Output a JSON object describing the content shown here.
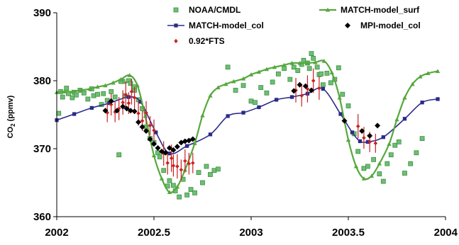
{
  "chart_data": {
    "type": "scatter",
    "title": "",
    "ylabel": "CO2 (ppmv)",
    "ylabel_main": "CO",
    "ylabel_sub": "2",
    "ylabel_rest": " (ppmv)",
    "xlabel": "",
    "xlim": [
      2002,
      2004
    ],
    "ylim": [
      360,
      390
    ],
    "x_ticks": [
      2002,
      2002.5,
      2003,
      2003.5,
      2004
    ],
    "x_tick_labels": [
      "2002",
      "2002.5",
      "2003",
      "2003.5",
      "2004"
    ],
    "y_ticks": [
      360,
      370,
      380,
      390
    ],
    "y_tick_labels": [
      "360",
      "370",
      "380",
      "390"
    ],
    "grid": false,
    "legend_position": "top",
    "colors": {
      "noaa": "#6dbf73",
      "noaa_edge": "#3f8f45",
      "surf": "#55a83c",
      "col": "#2b2b8a",
      "mpi": "#000000",
      "fts": "#cc1f1f"
    },
    "series": [
      {
        "name": "NOAA/CMDL",
        "key": "noaa",
        "style": "square-markers",
        "x": [
          2002.01,
          2002.02,
          2002.03,
          2002.05,
          2002.06,
          2002.08,
          2002.09,
          2002.1,
          2002.12,
          2002.14,
          2002.16,
          2002.18,
          2002.19,
          2002.21,
          2002.23,
          2002.24,
          2002.26,
          2002.28,
          2002.3,
          2002.32,
          2002.34,
          2002.35,
          2002.37,
          2002.38,
          2002.4,
          2002.42,
          2002.44,
          2002.46,
          2002.48,
          2002.5,
          2002.52,
          2002.53,
          2002.55,
          2002.57,
          2002.58,
          2002.6,
          2002.61,
          2002.63,
          2002.65,
          2002.67,
          2002.69,
          2002.71,
          2002.73,
          2002.75,
          2002.77,
          2002.79,
          2002.81,
          2002.83,
          2002.88,
          2002.92,
          2002.96,
          2003.0,
          2003.02,
          2003.05,
          2003.08,
          2003.11,
          2003.14,
          2003.17,
          2003.2,
          2003.22,
          2003.24,
          2003.26,
          2003.27,
          2003.29,
          2003.3,
          2003.32,
          2003.34,
          2003.35,
          2003.37,
          2003.39,
          2003.41,
          2003.43,
          2003.45,
          2003.47,
          2003.5,
          2003.53,
          2003.55,
          2003.58,
          2003.6,
          2003.63,
          2003.66,
          2003.68,
          2003.7,
          2003.72,
          2003.74,
          2003.76,
          2003.79,
          2003.82,
          2003.85,
          2003.88,
          2002.4,
          2002.33,
          2003.31,
          2003.36
        ],
        "y": [
          375.2,
          378.4,
          377.6,
          378.9,
          378.1,
          377.5,
          378.3,
          377.9,
          378.6,
          378.2,
          377.3,
          378.8,
          377.8,
          378.0,
          376.5,
          378.1,
          377.1,
          378.4,
          377.6,
          369.1,
          379.9,
          377.8,
          380.0,
          379.6,
          378.6,
          377.2,
          375.9,
          373.2,
          371.5,
          370.9,
          369.4,
          368.8,
          366.8,
          364.5,
          365.3,
          364.6,
          363.8,
          362.9,
          365.5,
          363.2,
          364.0,
          363.5,
          366.5,
          365.0,
          367.4,
          366.2,
          366.8,
          367.0,
          382.0,
          378.6,
          379.3,
          377.0,
          376.8,
          379.0,
          378.2,
          379.8,
          381.0,
          381.8,
          380.2,
          382.0,
          381.5,
          382.4,
          383.0,
          382.6,
          381.8,
          383.3,
          382.0,
          380.9,
          379.4,
          381.1,
          379.7,
          380.2,
          381.9,
          378.0,
          376.3,
          372.2,
          369.6,
          367.1,
          367.4,
          368.4,
          366.3,
          365.2,
          367.8,
          369.1,
          370.5,
          371.0,
          366.4,
          367.8,
          369.4,
          371.5,
          379.1,
          379.9,
          384.0,
          381.0
        ]
      },
      {
        "name": "MATCH-model_surf",
        "key": "surf",
        "style": "line-triangle",
        "x": [
          2002.0,
          2002.04,
          2002.08,
          2002.12,
          2002.17,
          2002.21,
          2002.25,
          2002.29,
          2002.33,
          2002.375,
          2002.415,
          2002.455,
          2002.5,
          2002.54,
          2002.58,
          2002.62,
          2002.66,
          2002.71,
          2002.75,
          2002.79,
          2002.83,
          2002.87,
          2002.91,
          2002.96,
          2003.0,
          2003.04,
          2003.08,
          2003.12,
          2003.17,
          2003.21,
          2003.25,
          2003.29,
          2003.33,
          2003.375,
          2003.415,
          2003.455,
          2003.5,
          2003.54,
          2003.58,
          2003.62,
          2003.66,
          2003.71,
          2003.75,
          2003.79,
          2003.83,
          2003.87,
          2003.91,
          2003.96
        ],
        "y": [
          378.3,
          378.4,
          378.4,
          378.6,
          378.8,
          379.1,
          379.3,
          379.7,
          380.2,
          380.8,
          379.3,
          374.8,
          369.0,
          365.6,
          363.6,
          364.4,
          366.9,
          370.8,
          374.9,
          377.8,
          379.0,
          379.5,
          379.9,
          380.3,
          380.9,
          381.3,
          381.7,
          382.0,
          382.3,
          382.6,
          382.6,
          382.6,
          382.7,
          382.9,
          381.2,
          377.5,
          371.3,
          367.4,
          365.6,
          366.0,
          367.8,
          370.7,
          374.3,
          377.5,
          379.5,
          380.6,
          381.1,
          381.4
        ]
      },
      {
        "name": "MATCH-model_col",
        "key": "col",
        "style": "line-square",
        "x": [
          2002.0,
          2002.09,
          2002.18,
          2002.27,
          2002.37,
          2002.43,
          2002.51,
          2002.58,
          2002.67,
          2002.79,
          2002.88,
          2002.96,
          2003.04,
          2003.13,
          2003.21,
          2003.29,
          2003.37,
          2003.46,
          2003.52,
          2003.56,
          2003.6,
          2003.68,
          2003.79,
          2003.88,
          2003.96
        ],
        "y": [
          374.2,
          375.1,
          376.0,
          376.7,
          377.6,
          376.9,
          372.4,
          369.3,
          370.4,
          372.1,
          374.8,
          375.3,
          376.1,
          377.2,
          377.6,
          378.1,
          378.8,
          375.1,
          372.4,
          371.1,
          371.0,
          371.7,
          374.4,
          376.8,
          377.3
        ]
      },
      {
        "name": "MPI-model_col",
        "key": "mpi",
        "style": "diamond-markers",
        "x": [
          2002.25,
          2002.28,
          2002.31,
          2002.34,
          2002.36,
          2002.38,
          2002.4,
          2002.42,
          2002.44,
          2002.46,
          2002.48,
          2002.5,
          2002.52,
          2002.54,
          2002.56,
          2002.58,
          2002.6,
          2002.62,
          2002.64,
          2002.66,
          2002.68,
          2002.7,
          2003.22,
          2003.25,
          2003.28,
          2003.31,
          2003.48,
          2003.57,
          2003.61,
          2003.65
        ],
        "y": [
          375.6,
          377.0,
          375.6,
          376.2,
          375.9,
          375.6,
          375.5,
          373.9,
          373.2,
          372.6,
          371.4,
          370.7,
          370.1,
          369.6,
          369.4,
          370.1,
          369.8,
          370.3,
          370.9,
          371.1,
          371.2,
          371.4,
          378.5,
          379.4,
          379.2,
          378.6,
          374.1,
          372.6,
          371.9,
          373.4
        ]
      },
      {
        "name": "0.92*FTS",
        "key": "fts",
        "style": "errorbar-markers",
        "x": [
          2002.26,
          2002.28,
          2002.3,
          2002.32,
          2002.34,
          2002.355,
          2002.37,
          2002.385,
          2002.4,
          2002.42,
          2002.44,
          2002.46,
          2002.48,
          2002.5,
          2002.55,
          2002.57,
          2002.59,
          2002.6,
          2002.62,
          2002.64,
          2002.66,
          2002.68,
          2002.7,
          2003.23,
          2003.26,
          2003.29,
          2003.32,
          2003.35,
          2003.55,
          2003.58,
          2003.61,
          2003.64
        ],
        "y": [
          375.3,
          376.5,
          375.4,
          375.9,
          376.8,
          377.9,
          376.7,
          378.4,
          377.5,
          375.2,
          374.1,
          375.3,
          373.4,
          372.7,
          369.3,
          367.9,
          368.6,
          367.5,
          367.4,
          366.9,
          368.2,
          367.8,
          367.9,
          378.6,
          377.8,
          378.8,
          380.0,
          378.9,
          373.3,
          371.6,
          371.0,
          370.8
        ],
        "err": [
          1.4,
          1.6,
          1.5,
          1.7,
          1.8,
          2.0,
          1.6,
          1.9,
          1.6,
          1.8,
          1.5,
          1.7,
          1.4,
          1.6,
          1.8,
          1.7,
          2.0,
          1.6,
          1.8,
          1.5,
          1.7,
          1.6,
          1.5,
          1.8,
          1.6,
          2.0,
          1.8,
          1.7,
          1.8,
          1.6,
          1.5,
          1.4
        ]
      }
    ]
  }
}
